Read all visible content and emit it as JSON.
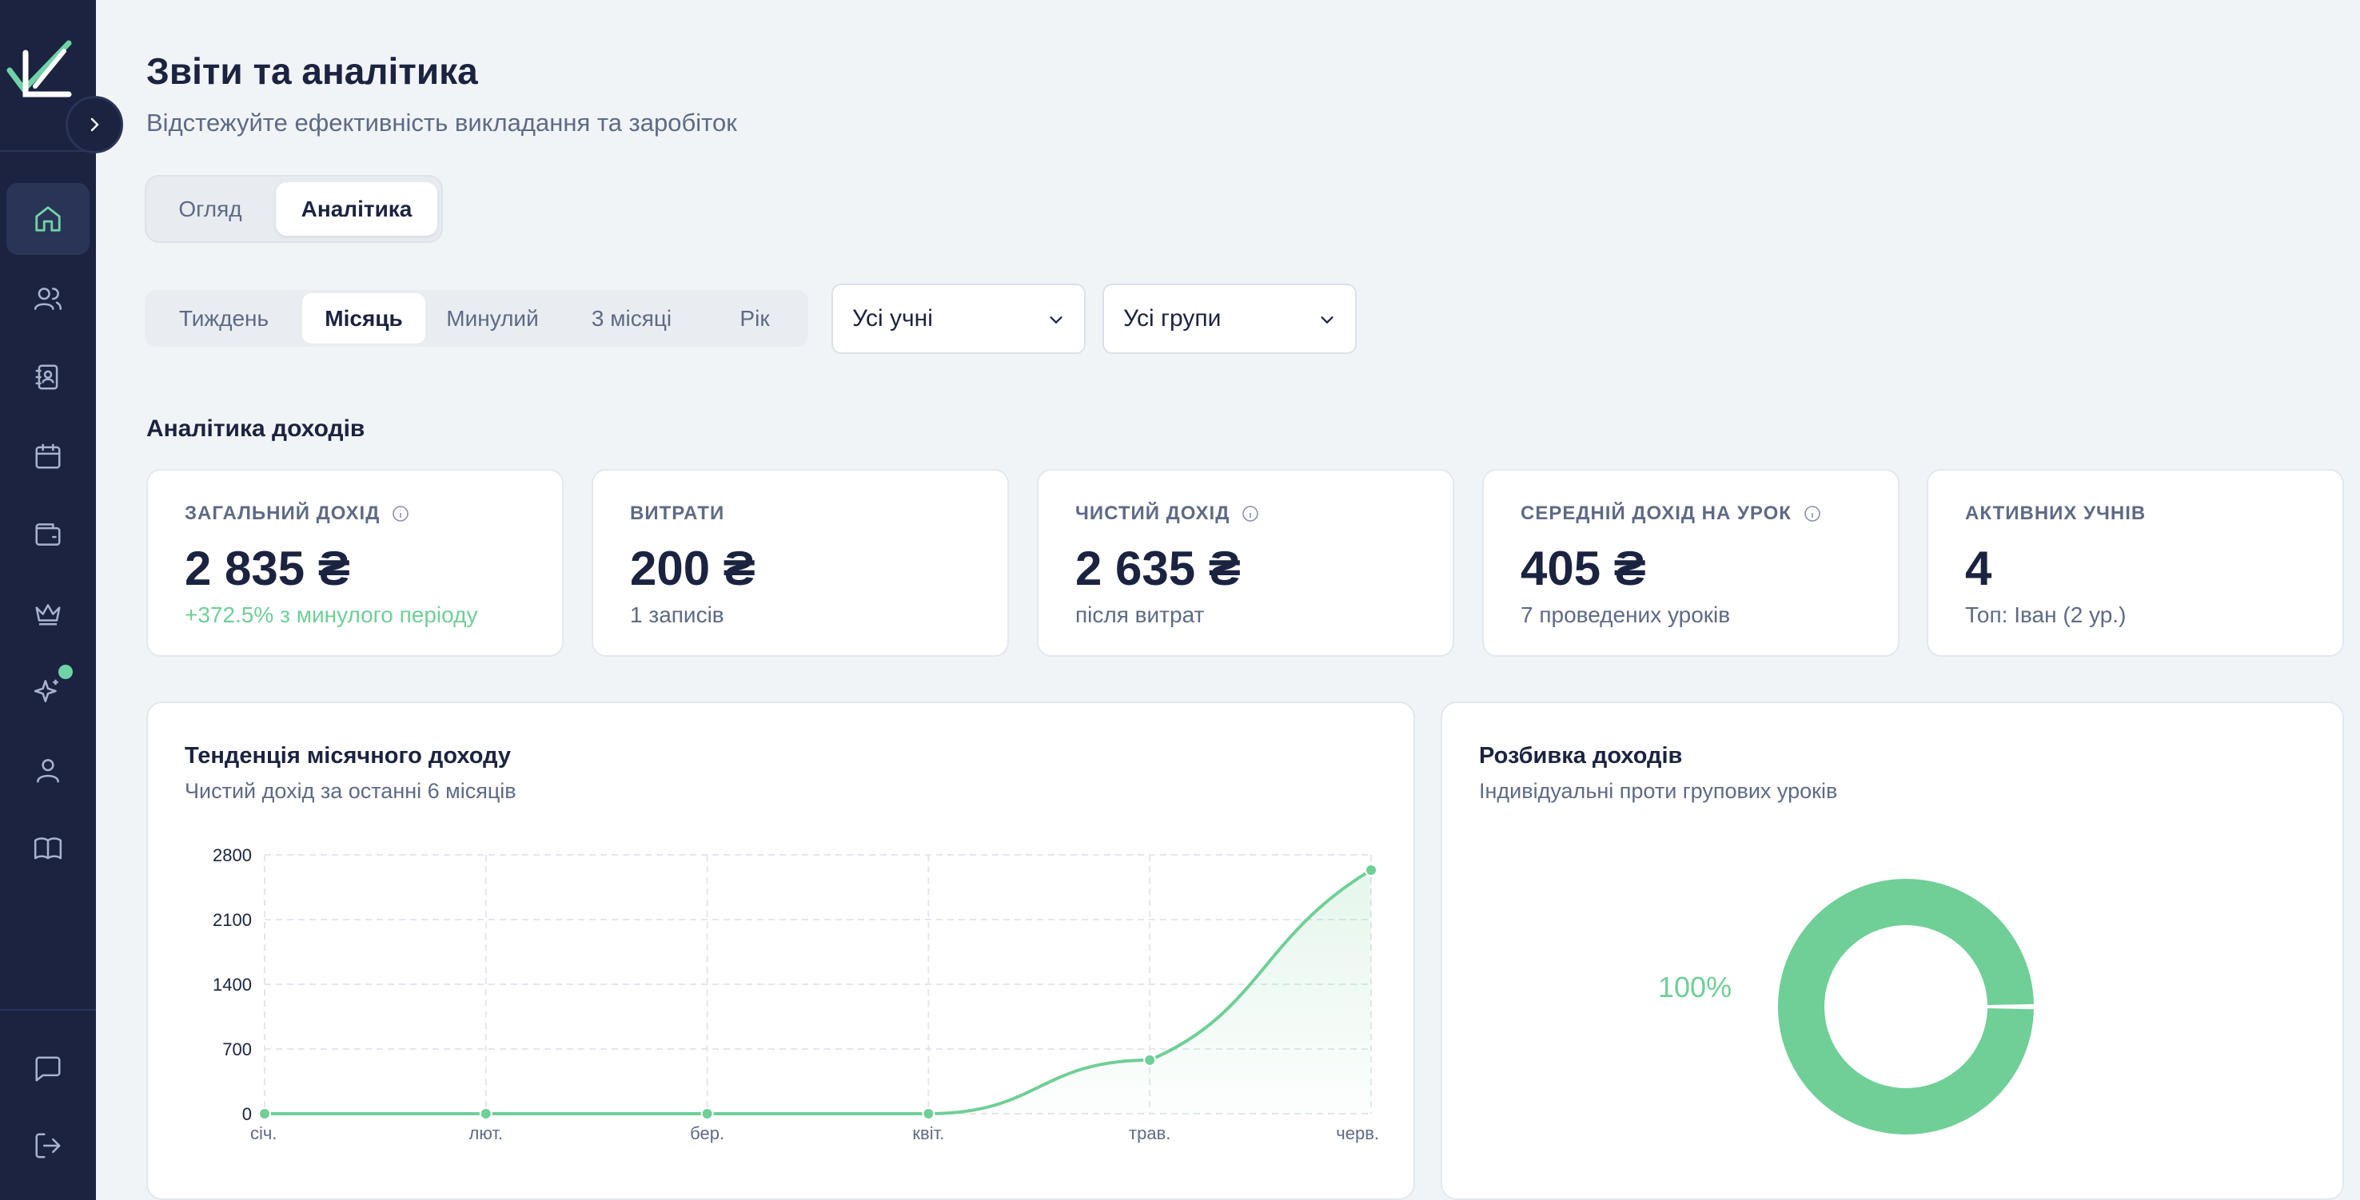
{
  "sidebar": {
    "toggle_icon": "chevron-right-icon",
    "items": [
      {
        "icon": "home-icon",
        "active": true
      },
      {
        "icon": "users-icon",
        "active": false
      },
      {
        "icon": "contact-book-icon",
        "active": false
      },
      {
        "icon": "calendar-icon",
        "active": false
      },
      {
        "icon": "wallet-icon",
        "active": false
      },
      {
        "icon": "crown-icon",
        "active": false
      },
      {
        "icon": "sparkles-icon",
        "active": false,
        "badge": true
      },
      {
        "icon": "user-icon",
        "active": false
      },
      {
        "icon": "book-icon",
        "active": false
      }
    ],
    "bottom_items": [
      {
        "icon": "chat-icon"
      },
      {
        "icon": "logout-icon"
      }
    ],
    "accent": "#6fd3a8"
  },
  "header": {
    "title": "Звіти та аналітика",
    "subtitle": "Відстежуйте ефективність викладання та заробіток"
  },
  "view_tabs": [
    {
      "label": "Огляд",
      "active": false
    },
    {
      "label": "Аналітика",
      "active": true
    }
  ],
  "period_tabs": [
    {
      "label": "Тиждень",
      "active": false
    },
    {
      "label": "Місяць",
      "active": true
    },
    {
      "label": "Минулий",
      "active": false
    },
    {
      "label": "3 місяці",
      "active": false
    },
    {
      "label": "Рік",
      "active": false
    }
  ],
  "filters": {
    "students": "Усі учні",
    "groups": "Усі групи"
  },
  "section_title": "Аналітика доходів",
  "stats": [
    {
      "label": "ЗАГАЛЬНИЙ ДОХІД",
      "info": true,
      "value": "2 835 ₴",
      "note": "+372.5% з минулого періоду",
      "note_positive": true
    },
    {
      "label": "ВИТРАТИ",
      "info": false,
      "value": "200 ₴",
      "note": "1 записів",
      "note_positive": false
    },
    {
      "label": "ЧИСТИЙ ДОХІД",
      "info": true,
      "value": "2 635 ₴",
      "note": "після витрат",
      "note_positive": false
    },
    {
      "label": "СЕРЕДНІЙ ДОХІД НА УРОК",
      "info": true,
      "value": "405 ₴",
      "note": "7 проведених уроків",
      "note_positive": false
    },
    {
      "label": "АКТИВНИХ УЧНІВ",
      "info": false,
      "value": "4",
      "note": "Топ: Іван (2 ур.)",
      "note_positive": false
    }
  ],
  "trend_card": {
    "title": "Тенденція місячного доходу",
    "subtitle": "Чистий дохід за останні 6 місяців"
  },
  "breakdown_card": {
    "title": "Розбивка доходів",
    "subtitle": "Індивідуальні проти групових уроків",
    "percent_label": "100%"
  },
  "chart_data": [
    {
      "type": "line",
      "x": [
        "січ.",
        "лют.",
        "бер.",
        "квіт.",
        "трав.",
        "черв."
      ],
      "series": [
        {
          "values": [
            0,
            0,
            0,
            0,
            580,
            2635
          ]
        }
      ],
      "yticks": [
        0,
        700,
        1400,
        2100,
        2800
      ],
      "ylim": [
        0,
        2800
      ],
      "grid": true,
      "color": "#6fcf97"
    },
    {
      "type": "pie",
      "categories": [
        "Індивідуальні",
        "Групові"
      ],
      "values": [
        100,
        0
      ],
      "labels": [
        "100%"
      ],
      "color": "#6fcf97"
    }
  ]
}
